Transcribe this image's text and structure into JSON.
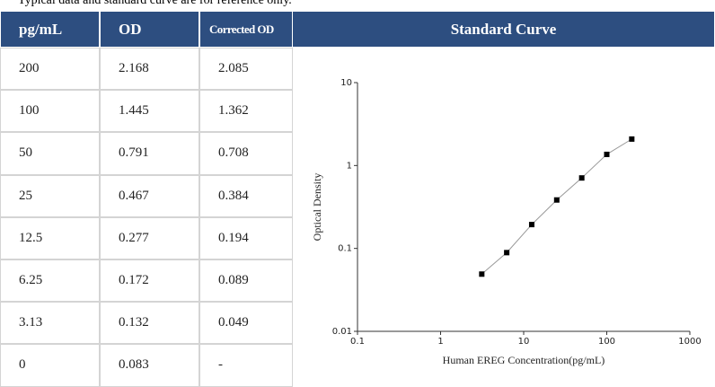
{
  "note": "Typical data and standard curve are for reference only.",
  "table": {
    "header": [
      "pg/mL",
      "OD",
      "Corrected OD"
    ],
    "rows": [
      [
        "200",
        "2.168",
        "2.085"
      ],
      [
        "100",
        "1.445",
        "1.362"
      ],
      [
        "50",
        "0.791",
        "0.708"
      ],
      [
        "25",
        "0.467",
        "0.384"
      ],
      [
        "12.5",
        "0.277",
        "0.194"
      ],
      [
        "6.25",
        "0.172",
        "0.089"
      ],
      [
        "3.13",
        "0.132",
        "0.049"
      ],
      [
        "0",
        "0.083",
        "-"
      ]
    ]
  },
  "chart_data": {
    "type": "line",
    "title": "Standard Curve",
    "x_label": "Human EREG  Concentration(pg/mL)",
    "y_label": "Optical Density",
    "x": [
      3.13,
      6.25,
      12.5,
      25,
      50,
      100,
      200
    ],
    "series": [
      {
        "color": "#000000",
        "values": [
          0.049,
          0.089,
          0.194,
          0.384,
          0.708,
          1.362,
          2.085
        ]
      }
    ],
    "line_color": "#999999",
    "xscale": "log",
    "yscale": "log",
    "xlim": [
      0.1,
      1000
    ],
    "ylim": [
      0.01,
      10
    ],
    "xticks": [
      0.1,
      1,
      10,
      100,
      1000
    ],
    "yticks": [
      0.01,
      0.1,
      1,
      10
    ]
  }
}
